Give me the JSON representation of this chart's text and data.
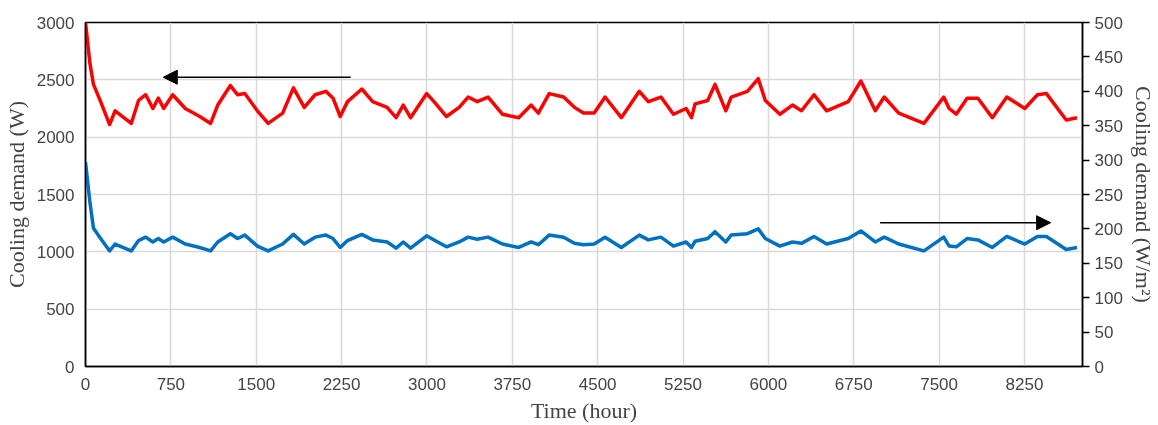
{
  "chart_data": {
    "type": "line",
    "xlabel": "Time (hour)",
    "ylabel": "Cooling demand (W)",
    "y2label": "Cooling demand (W/m²)",
    "xlim": [
      0,
      8760
    ],
    "xticks": [
      0,
      750,
      1500,
      2250,
      3000,
      3750,
      4500,
      5250,
      6000,
      6750,
      7500,
      8250
    ],
    "ylim": [
      0,
      3000
    ],
    "yticks": [
      0,
      500,
      1000,
      1500,
      2000,
      2500,
      3000
    ],
    "y2lim": [
      0,
      500
    ],
    "y2ticks": [
      0,
      50,
      100,
      150,
      200,
      250,
      300,
      350,
      400,
      450,
      500
    ],
    "grid": true,
    "line_style": "solid",
    "x": [
      0,
      38,
      70,
      133,
      212,
      260,
      402,
      466,
      529,
      592,
      640,
      687,
      766,
      877,
      1004,
      1099,
      1162,
      1273,
      1336,
      1400,
      1510,
      1605,
      1732,
      1827,
      1922,
      2017,
      2112,
      2175,
      2238,
      2302,
      2428,
      2523,
      2650,
      2729,
      2792,
      2856,
      2998,
      3062,
      3172,
      3283,
      3362,
      3442,
      3537,
      3663,
      3806,
      3916,
      3979,
      4074,
      4201,
      4296,
      4375,
      4470,
      4565,
      4708,
      4866,
      4945,
      5056,
      5166,
      5277,
      5325,
      5356,
      5467,
      5531,
      5626,
      5673,
      5816,
      5911,
      5973,
      6101,
      6211,
      6291,
      6401,
      6512,
      6702,
      6813,
      6939,
      7018,
      7145,
      7367,
      7541,
      7588,
      7651,
      7746,
      7841,
      7968,
      8095,
      8253,
      8364,
      8443,
      8617,
      8712
    ],
    "series": [
      {
        "color": "#ff0000",
        "values": [
          3000,
          2650,
          2460,
          2310,
          2110,
          2230,
          2120,
          2320,
          2370,
          2250,
          2340,
          2250,
          2370,
          2250,
          2180,
          2120,
          2280,
          2450,
          2370,
          2380,
          2230,
          2120,
          2210,
          2430,
          2260,
          2370,
          2400,
          2340,
          2180,
          2310,
          2420,
          2310,
          2260,
          2170,
          2280,
          2170,
          2380,
          2310,
          2180,
          2260,
          2350,
          2310,
          2350,
          2200,
          2170,
          2280,
          2210,
          2380,
          2350,
          2260,
          2210,
          2210,
          2350,
          2170,
          2400,
          2310,
          2350,
          2200,
          2250,
          2170,
          2290,
          2320,
          2460,
          2230,
          2350,
          2400,
          2510,
          2320,
          2200,
          2280,
          2230,
          2370,
          2230,
          2310,
          2490,
          2230,
          2350,
          2210,
          2120,
          2350,
          2250,
          2200,
          2340,
          2340,
          2170,
          2350,
          2250,
          2370,
          2380,
          2150,
          2170
        ]
      },
      {
        "color": "#0070c0",
        "axis": "y2",
        "values": [
          297,
          240,
          201,
          186,
          168,
          178,
          168,
          183,
          188,
          181,
          186,
          181,
          188,
          178,
          173,
          168,
          181,
          193,
          186,
          191,
          175,
          168,
          178,
          192,
          178,
          188,
          191,
          186,
          173,
          183,
          192,
          184,
          181,
          172,
          181,
          172,
          190,
          184,
          174,
          181,
          188,
          185,
          188,
          178,
          173,
          181,
          177,
          191,
          188,
          179,
          177,
          178,
          188,
          173,
          191,
          184,
          188,
          175,
          181,
          173,
          182,
          186,
          196,
          181,
          191,
          193,
          200,
          186,
          175,
          181,
          179,
          189,
          178,
          186,
          197,
          181,
          188,
          178,
          168,
          188,
          175,
          174,
          186,
          184,
          173,
          189,
          178,
          189,
          189,
          170,
          173
        ]
      }
    ]
  }
}
